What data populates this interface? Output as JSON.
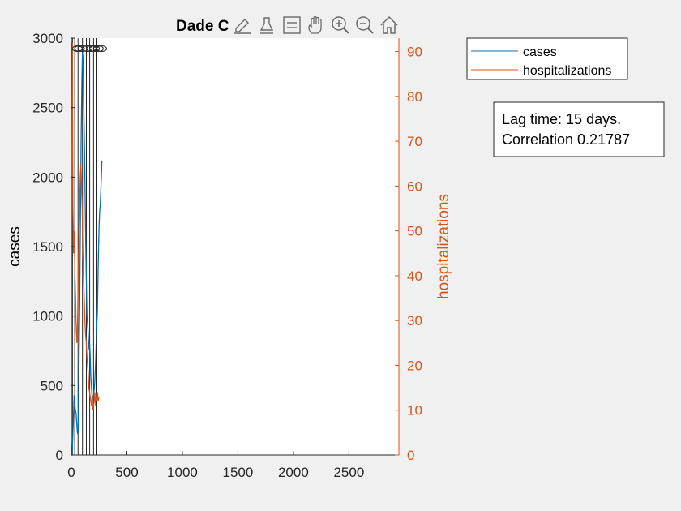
{
  "chart_data": {
    "type": "line",
    "title": "Dade C",
    "xlabel": "",
    "ylabel_left": "cases",
    "ylabel_right": "hospitalizations",
    "xlim": [
      0,
      2950
    ],
    "ylim_left": [
      0,
      3000
    ],
    "ylim_right": [
      0,
      93
    ],
    "xticks": [
      0,
      500,
      1000,
      1500,
      2000,
      2500
    ],
    "yticks_left": [
      0,
      500,
      1000,
      1500,
      2000,
      2500,
      3000
    ],
    "yticks_right": [
      0,
      10,
      20,
      30,
      40,
      50,
      60,
      70,
      80,
      90
    ],
    "legend": {
      "placement": "outside-top-right",
      "entries": [
        "cases",
        "hospitalizations"
      ]
    },
    "annotation": {
      "line1": "Lag time: 15 days.",
      "line2": "Correlation 0.21787"
    },
    "vlines": [
      10,
      30,
      60,
      100,
      135,
      165,
      200,
      230
    ],
    "series": [
      {
        "name": "cases",
        "axis": "left",
        "color": "#0072BD",
        "x": [
          5,
          12,
          20,
          25,
          30,
          36,
          42,
          48,
          54,
          58,
          62,
          68,
          75,
          82,
          88,
          95,
          100,
          105,
          110,
          118,
          125,
          130,
          135,
          140,
          145,
          150,
          155,
          160,
          165,
          170,
          175,
          180,
          185,
          190,
          195,
          200,
          205,
          210,
          215,
          220,
          225,
          230,
          235,
          240,
          245,
          250,
          255,
          260,
          265,
          270,
          275
        ],
        "y": [
          0,
          100,
          300,
          430,
          360,
          330,
          300,
          230,
          160,
          150,
          170,
          600,
          1100,
          1700,
          2300,
          2700,
          2900,
          2850,
          2600,
          2200,
          1800,
          1500,
          1250,
          1000,
          950,
          900,
          820,
          760,
          800,
          700,
          560,
          500,
          440,
          420,
          400,
          430,
          470,
          520,
          600,
          700,
          850,
          950,
          1050,
          1300,
          1500,
          1650,
          1750,
          1800,
          1900,
          2000,
          2120
        ]
      },
      {
        "name": "hospitalizations",
        "axis": "right",
        "color": "#D95319",
        "x": [
          8,
          14,
          20,
          26,
          32,
          38,
          44,
          50,
          56,
          62,
          68,
          74,
          80,
          86,
          92,
          98,
          104,
          110,
          116,
          122,
          128,
          134,
          140,
          146,
          152,
          158,
          164,
          170,
          176,
          182,
          188,
          194,
          200,
          206,
          212,
          218,
          224,
          230,
          236,
          242,
          248
        ],
        "y": [
          92,
          55,
          45,
          50,
          40,
          35,
          28,
          25,
          30,
          40,
          50,
          55,
          62,
          65,
          60,
          55,
          45,
          40,
          35,
          30,
          27,
          25,
          22,
          20,
          18,
          15,
          14,
          13,
          12,
          11,
          13,
          10,
          11,
          12,
          14,
          11,
          13,
          12,
          14,
          12,
          13
        ]
      }
    ]
  }
}
